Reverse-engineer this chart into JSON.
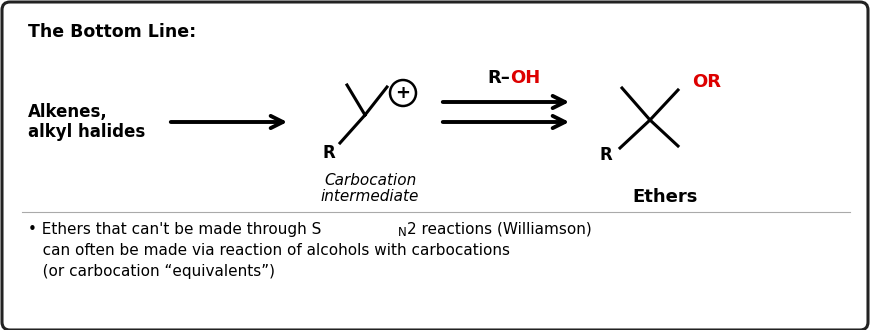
{
  "title": "The Bottom Line:",
  "background_color": "#ffffff",
  "border_color": "#222222",
  "text_color": "#000000",
  "red_color": "#dd0000",
  "left_label_line1": "Alkenes,",
  "left_label_line2": "alkyl halides",
  "carbocation_label1": "Carbocation",
  "carbocation_label2": "intermediate",
  "ethers_label": "Ethers",
  "bullet_line1a": "• Ethers that can't be made through S",
  "bullet_sub": "N",
  "bullet_line1b": "2 reactions (Williamson)",
  "bullet_line2": "   can often be made via reaction of alcohols with carbocations",
  "bullet_line3": "   (or carbocation “equivalents”)",
  "figsize": [
    8.72,
    3.3
  ],
  "dpi": 100
}
